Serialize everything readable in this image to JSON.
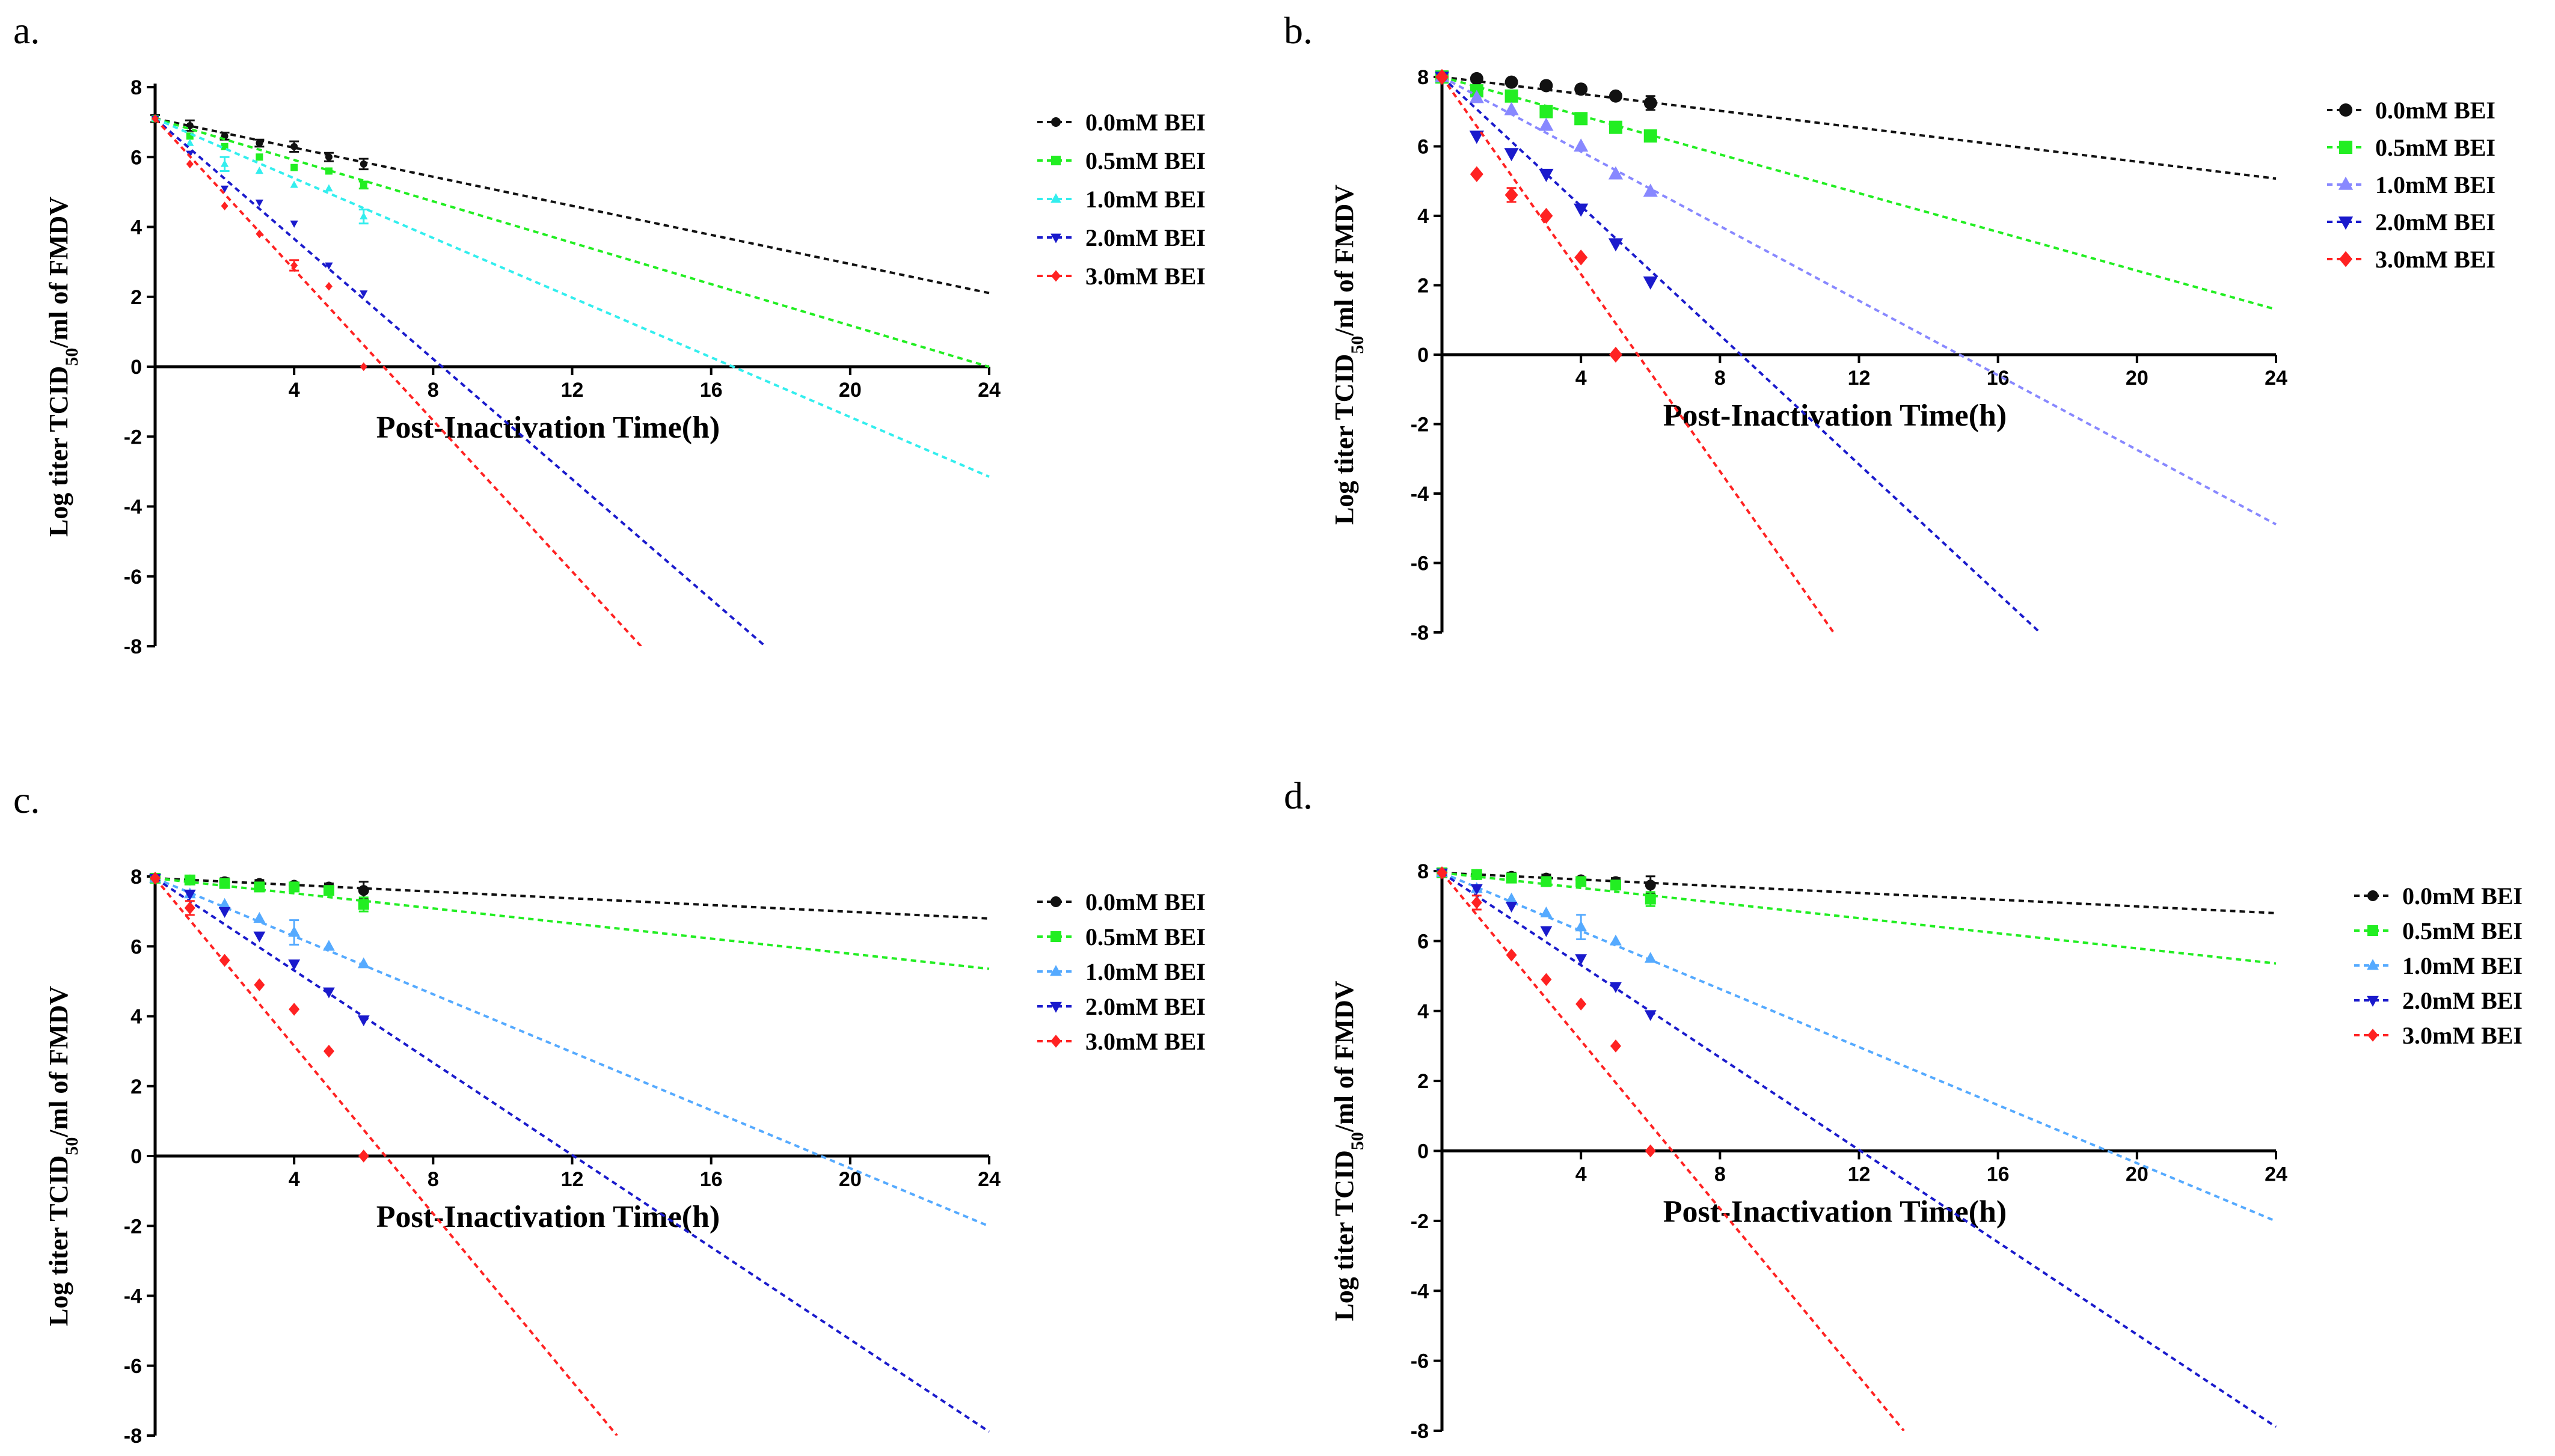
{
  "colors": {
    "s0": "#111111",
    "s05": "#22ee22",
    "s10_a": "#33eeee",
    "s10_b": "#8888ff",
    "s10_c": "#55aaff",
    "s20": "#1a1acc",
    "s30": "#ff2222"
  },
  "chart_data": [
    {
      "panel": "a.",
      "type": "scatter",
      "xlabel": "Post-Inactivation Time(h)",
      "ylabel_main": "Log titer TCID",
      "ylabel_sub": "50",
      "ylabel_rest": "/ml of FMDV",
      "xlim": [
        0,
        24
      ],
      "ylim": [
        -8,
        8
      ],
      "xticks": [
        4,
        8,
        12,
        16,
        20,
        24
      ],
      "yticks": [
        -8,
        -6,
        -4,
        -2,
        0,
        2,
        4,
        6,
        8
      ],
      "series": [
        {
          "name": "0.0mM BEI",
          "color": "s0",
          "marker": "circle",
          "size": 6,
          "x": [
            0,
            1,
            2,
            3,
            4,
            5,
            6
          ],
          "y": [
            7.1,
            6.9,
            6.6,
            6.4,
            6.3,
            6.0,
            5.8
          ],
          "err": [
            0.1,
            0.15,
            0.1,
            0.1,
            0.15,
            0.12,
            0.15
          ],
          "fit": {
            "slope": -0.208,
            "intercept": 7.1
          }
        },
        {
          "name": "0.5mM BEI",
          "color": "s05",
          "marker": "square",
          "size": 6,
          "x": [
            0,
            1,
            2,
            3,
            4,
            5,
            6
          ],
          "y": [
            7.1,
            6.6,
            6.3,
            6.0,
            5.7,
            5.6,
            5.2
          ],
          "err": [
            0,
            0,
            0,
            0,
            0,
            0,
            0.1
          ],
          "fit": {
            "slope": -0.296,
            "intercept": 7.1
          }
        },
        {
          "name": "1.0mM BEI",
          "color": "s10_a",
          "marker": "triangle-up",
          "size": 6,
          "x": [
            0,
            1,
            2,
            3,
            4,
            5,
            6
          ],
          "y": [
            7.1,
            6.4,
            5.8,
            5.6,
            5.2,
            5.1,
            4.3
          ],
          "err": [
            0,
            0,
            0.2,
            0,
            0,
            0,
            0.2
          ],
          "fit": {
            "slope": -0.427,
            "intercept": 7.1
          }
        },
        {
          "name": "2.0mM BEI",
          "color": "s20",
          "marker": "triangle-down",
          "size": 6,
          "x": [
            0,
            1,
            2,
            3,
            4,
            5,
            6
          ],
          "y": [
            7.1,
            6.1,
            5.1,
            4.7,
            4.1,
            2.9,
            2.1
          ],
          "err": [
            0,
            0,
            0,
            0,
            0,
            0,
            0
          ],
          "fit": {
            "slope": -0.86,
            "intercept": 7.1
          }
        },
        {
          "name": "3.0mM BEI",
          "color": "s30",
          "marker": "diamond",
          "size": 6,
          "x": [
            0,
            1,
            2,
            3,
            4,
            5,
            6
          ],
          "y": [
            7.1,
            5.8,
            4.6,
            3.8,
            2.9,
            2.3,
            0
          ],
          "err": [
            0,
            0,
            0,
            0,
            0.15,
            0,
            0
          ],
          "fit": {
            "slope": -1.08,
            "intercept": 7.1
          }
        }
      ]
    },
    {
      "panel": "b.",
      "type": "scatter",
      "xlabel": "Post-Inactivation Time(h)",
      "ylabel_main": "Log titer TCID",
      "ylabel_sub": "50",
      "ylabel_rest": "/ml of FMDV",
      "xlim": [
        0,
        24
      ],
      "ylim": [
        -8,
        8
      ],
      "xticks": [
        4,
        8,
        12,
        16,
        20,
        24
      ],
      "yticks": [
        -8,
        -6,
        -4,
        -2,
        0,
        2,
        4,
        6,
        8
      ],
      "series": [
        {
          "name": "0.0mM BEI",
          "color": "s0",
          "marker": "circle",
          "size": 11,
          "x": [
            0,
            1,
            2,
            3,
            4,
            5,
            6
          ],
          "y": [
            8.0,
            7.95,
            7.85,
            7.75,
            7.65,
            7.45,
            7.25
          ],
          "err": [
            0,
            0,
            0,
            0,
            0,
            0,
            0.2
          ],
          "fit": {
            "slope": -0.122,
            "intercept": 8.0
          }
        },
        {
          "name": "0.5mM BEI",
          "color": "s05",
          "marker": "square",
          "size": 11,
          "x": [
            0,
            1,
            2,
            3,
            4,
            5,
            6
          ],
          "y": [
            8.0,
            7.6,
            7.45,
            7.0,
            6.8,
            6.55,
            6.3
          ],
          "err": [
            0,
            0,
            0,
            0,
            0,
            0,
            0
          ],
          "fit": {
            "slope": -0.279,
            "intercept": 8.0
          }
        },
        {
          "name": "1.0mM BEI",
          "color": "s10_b",
          "marker": "triangle-up",
          "size": 11,
          "x": [
            0,
            1,
            2,
            3,
            4,
            5,
            6
          ],
          "y": [
            8.0,
            7.4,
            7.05,
            6.6,
            6.0,
            5.2,
            4.7
          ],
          "err": [
            0,
            0,
            0,
            0,
            0,
            0,
            0
          ],
          "fit": {
            "slope": -0.537,
            "intercept": 8.0
          }
        },
        {
          "name": "2.0mM BEI",
          "color": "s20",
          "marker": "triangle-down",
          "size": 11,
          "x": [
            0,
            1,
            2,
            3,
            4,
            5,
            6
          ],
          "y": [
            8.0,
            6.3,
            5.8,
            5.2,
            4.2,
            3.2,
            2.1
          ],
          "err": [
            0,
            0,
            0,
            0,
            0,
            0,
            0
          ],
          "fit": {
            "slope": -0.93,
            "intercept": 8.0
          }
        },
        {
          "name": "3.0mM BEI",
          "color": "s30",
          "marker": "diamond",
          "size": 11,
          "x": [
            0,
            1,
            2,
            3,
            4,
            5
          ],
          "y": [
            8.0,
            5.2,
            4.6,
            4.0,
            2.8,
            0
          ],
          "err": [
            0,
            0,
            0.2,
            0,
            0,
            0
          ],
          "fit": {
            "slope": -1.42,
            "intercept": 8.0
          }
        }
      ]
    },
    {
      "panel": "c.",
      "type": "scatter",
      "xlabel": "Post-Inactivation Time(h)",
      "ylabel_main": "Log titer TCID",
      "ylabel_sub": "50",
      "ylabel_rest": "/ml of FMDV",
      "xlim": [
        0,
        24
      ],
      "ylim": [
        -8,
        8
      ],
      "xticks": [
        4,
        8,
        12,
        16,
        20,
        24
      ],
      "yticks": [
        -8,
        -6,
        -4,
        -2,
        0,
        2,
        4,
        6,
        8
      ],
      "series": [
        {
          "name": "0.0mM BEI",
          "color": "s0",
          "marker": "circle",
          "size": 9,
          "x": [
            0,
            1,
            2,
            3,
            4,
            5,
            6
          ],
          "y": [
            7.95,
            7.9,
            7.85,
            7.8,
            7.75,
            7.7,
            7.6
          ],
          "err": [
            0,
            0,
            0.1,
            0.1,
            0,
            0.1,
            0.25
          ],
          "fit": {
            "slope": -0.048,
            "intercept": 7.95
          }
        },
        {
          "name": "0.5mM BEI",
          "color": "s05",
          "marker": "square",
          "size": 9,
          "x": [
            0,
            1,
            2,
            3,
            4,
            5,
            6
          ],
          "y": [
            7.95,
            7.9,
            7.8,
            7.7,
            7.7,
            7.6,
            7.2
          ],
          "err": [
            0,
            0,
            0,
            0,
            0,
            0,
            0.2
          ],
          "fit": {
            "slope": -0.108,
            "intercept": 7.95
          }
        },
        {
          "name": "1.0mM BEI",
          "color": "s10_c",
          "marker": "triangle-up",
          "size": 9,
          "x": [
            0,
            1,
            2,
            3,
            4,
            5,
            6
          ],
          "y": [
            7.95,
            7.5,
            7.2,
            6.8,
            6.4,
            6.0,
            5.5
          ],
          "err": [
            0,
            0,
            0,
            0,
            0.35,
            0,
            0
          ],
          "fit": {
            "slope": -0.415,
            "intercept": 7.95
          }
        },
        {
          "name": "2.0mM BEI",
          "color": "s20",
          "marker": "triangle-down",
          "size": 9,
          "x": [
            0,
            1,
            2,
            3,
            4,
            5,
            6
          ],
          "y": [
            7.95,
            7.5,
            7.0,
            6.3,
            5.5,
            4.7,
            3.9
          ],
          "err": [
            0,
            0,
            0,
            0,
            0,
            0,
            0
          ],
          "fit": {
            "slope": -0.66,
            "intercept": 7.95
          }
        },
        {
          "name": "3.0mM BEI",
          "color": "s30",
          "marker": "diamond",
          "size": 9,
          "x": [
            0,
            1,
            2,
            3,
            4,
            5,
            6
          ],
          "y": [
            7.95,
            7.1,
            5.6,
            4.9,
            4.2,
            3.0,
            0
          ],
          "err": [
            0,
            0.2,
            0,
            0,
            0,
            0,
            0
          ],
          "fit": {
            "slope": -1.2,
            "intercept": 7.95
          }
        }
      ]
    },
    {
      "panel": "d.",
      "type": "scatter",
      "xlabel": "Post-Inactivation Time(h)",
      "ylabel_main": "Log titer TCID",
      "ylabel_sub": "50",
      "ylabel_rest": "/ml of FMDV",
      "xlim": [
        0,
        24
      ],
      "ylim": [
        -8,
        8
      ],
      "xticks": [
        4,
        8,
        12,
        16,
        20,
        24
      ],
      "yticks": [
        -8,
        -6,
        -4,
        -2,
        0,
        2,
        4,
        6,
        8
      ],
      "series": [
        {
          "name": "0.0mM BEI",
          "color": "s0",
          "marker": "circle",
          "size": 9,
          "x": [
            0,
            1,
            2,
            3,
            4,
            5,
            6
          ],
          "y": [
            7.95,
            7.9,
            7.85,
            7.8,
            7.75,
            7.7,
            7.6
          ],
          "err": [
            0,
            0,
            0.1,
            0.1,
            0,
            0.1,
            0.25
          ],
          "fit": {
            "slope": -0.048,
            "intercept": 7.95
          }
        },
        {
          "name": "0.5mM BEI",
          "color": "s05",
          "marker": "square",
          "size": 9,
          "x": [
            0,
            1,
            2,
            3,
            4,
            5,
            6
          ],
          "y": [
            7.95,
            7.9,
            7.8,
            7.7,
            7.7,
            7.6,
            7.2
          ],
          "err": [
            0,
            0,
            0,
            0,
            0,
            0,
            0.2
          ],
          "fit": {
            "slope": -0.108,
            "intercept": 7.95
          }
        },
        {
          "name": "1.0mM BEI",
          "color": "s10_c",
          "marker": "triangle-up",
          "size": 9,
          "x": [
            0,
            1,
            2,
            3,
            4,
            5,
            6
          ],
          "y": [
            7.95,
            7.5,
            7.2,
            6.8,
            6.4,
            6.0,
            5.5
          ],
          "err": [
            0,
            0,
            0,
            0,
            0.35,
            0,
            0
          ],
          "fit": {
            "slope": -0.415,
            "intercept": 7.95
          }
        },
        {
          "name": "2.0mM BEI",
          "color": "s20",
          "marker": "triangle-down",
          "size": 9,
          "x": [
            0,
            1,
            2,
            3,
            4,
            5,
            6
          ],
          "y": [
            7.95,
            7.5,
            7.0,
            6.3,
            5.5,
            4.7,
            3.9
          ],
          "err": [
            0,
            0,
            0,
            0,
            0,
            0,
            0
          ],
          "fit": {
            "slope": -0.66,
            "intercept": 7.95
          }
        },
        {
          "name": "3.0mM BEI",
          "color": "s30",
          "marker": "diamond",
          "size": 9,
          "x": [
            0,
            1,
            2,
            3,
            4,
            5,
            6
          ],
          "y": [
            7.95,
            7.1,
            5.6,
            4.9,
            4.2,
            3.0,
            0
          ],
          "err": [
            0,
            0.2,
            0,
            0,
            0,
            0,
            0
          ],
          "fit": {
            "slope": -1.2,
            "intercept": 7.95
          }
        }
      ]
    }
  ]
}
